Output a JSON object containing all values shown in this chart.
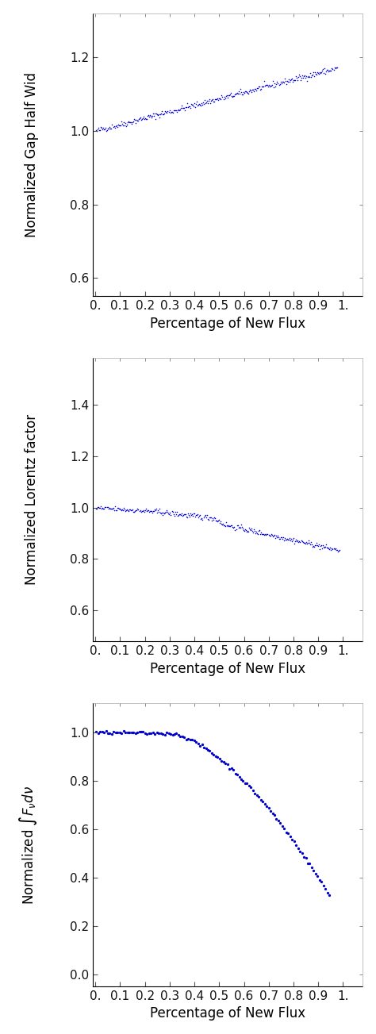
{
  "subplot1": {
    "ylabel": "Normalized Gap Half Wid",
    "xlabel": "Percentage of New Flux",
    "ylim": [
      0.55,
      1.32
    ],
    "xlim": [
      -0.01,
      1.08
    ],
    "yticks": [
      0.6,
      0.8,
      1.0,
      1.2
    ],
    "xticks": [
      0.0,
      0.1,
      0.2,
      0.3,
      0.4,
      0.5,
      0.6,
      0.7,
      0.8,
      0.9,
      1.0
    ],
    "xticklabels": [
      "0.",
      "0.1",
      "0.2",
      "0.3",
      "0.4",
      "0.5",
      "0.6",
      "0.7",
      "0.8",
      "0.9",
      "1."
    ],
    "dot_size": 1.2
  },
  "subplot2": {
    "ylabel": "Normalized Lorentz factor",
    "xlabel": "Percentage of New Flux",
    "ylim": [
      0.48,
      1.58
    ],
    "xlim": [
      -0.01,
      1.08
    ],
    "yticks": [
      0.6,
      0.8,
      1.0,
      1.2,
      1.4
    ],
    "xticks": [
      0.0,
      0.1,
      0.2,
      0.3,
      0.4,
      0.5,
      0.6,
      0.7,
      0.8,
      0.9,
      1.0
    ],
    "xticklabels": [
      "0.",
      "0.1",
      "0.2",
      "0.3",
      "0.4",
      "0.5",
      "0.6",
      "0.7",
      "0.8",
      "0.9",
      "1."
    ],
    "dot_size": 1.2
  },
  "subplot3": {
    "ylabel": "Normalized $\\int F_\\nu d\\nu$",
    "xlabel": "Percentage of New Flux",
    "ylim": [
      -0.05,
      1.12
    ],
    "xlim": [
      -0.01,
      1.08
    ],
    "yticks": [
      0.0,
      0.2,
      0.4,
      0.6,
      0.8,
      1.0
    ],
    "xticks": [
      0.0,
      0.1,
      0.2,
      0.3,
      0.4,
      0.5,
      0.6,
      0.7,
      0.8,
      0.9,
      1.0
    ],
    "xticklabels": [
      "0.",
      "0.1",
      "0.2",
      "0.3",
      "0.4",
      "0.5",
      "0.6",
      "0.7",
      "0.8",
      "0.9",
      "1."
    ],
    "dot_size": 5.5
  },
  "dot_color": "#0000CC",
  "background": "#FFFFFF",
  "tick_fs": 11,
  "label_fs": 12
}
